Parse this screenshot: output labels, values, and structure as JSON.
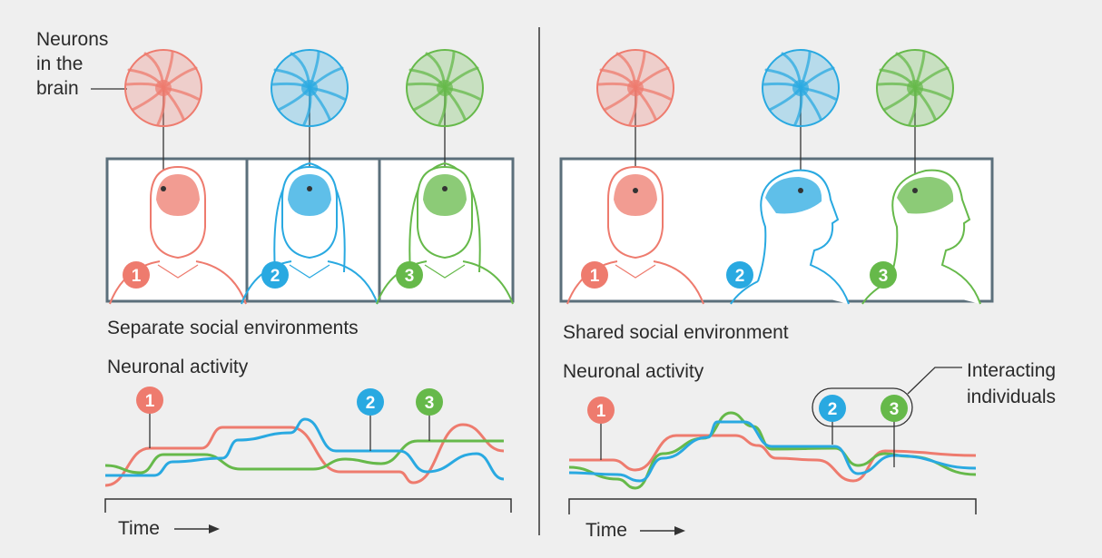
{
  "colors": {
    "person1": "#ee7b6e",
    "person2": "#29a9e1",
    "person3": "#66b94a",
    "panel_border": "#5b6f7b",
    "background": "#efefef",
    "ink": "#333333"
  },
  "icons": [
    "neuron-icon",
    "head-icon",
    "brain-icon",
    "number-badge",
    "arrow-right-icon"
  ],
  "left": {
    "neurons_label": [
      "Neurons",
      "in the",
      "brain"
    ],
    "panel_title": "Separate social environments",
    "activity_title": "Neuronal activity",
    "time_label": "Time",
    "badges": [
      "1",
      "2",
      "3"
    ]
  },
  "right": {
    "panel_title": "Shared social environment",
    "activity_title": "Neuronal activity",
    "time_label": "Time",
    "interacting_label": [
      "Interacting",
      "individuals"
    ],
    "badges": [
      "1",
      "2",
      "3"
    ]
  }
}
